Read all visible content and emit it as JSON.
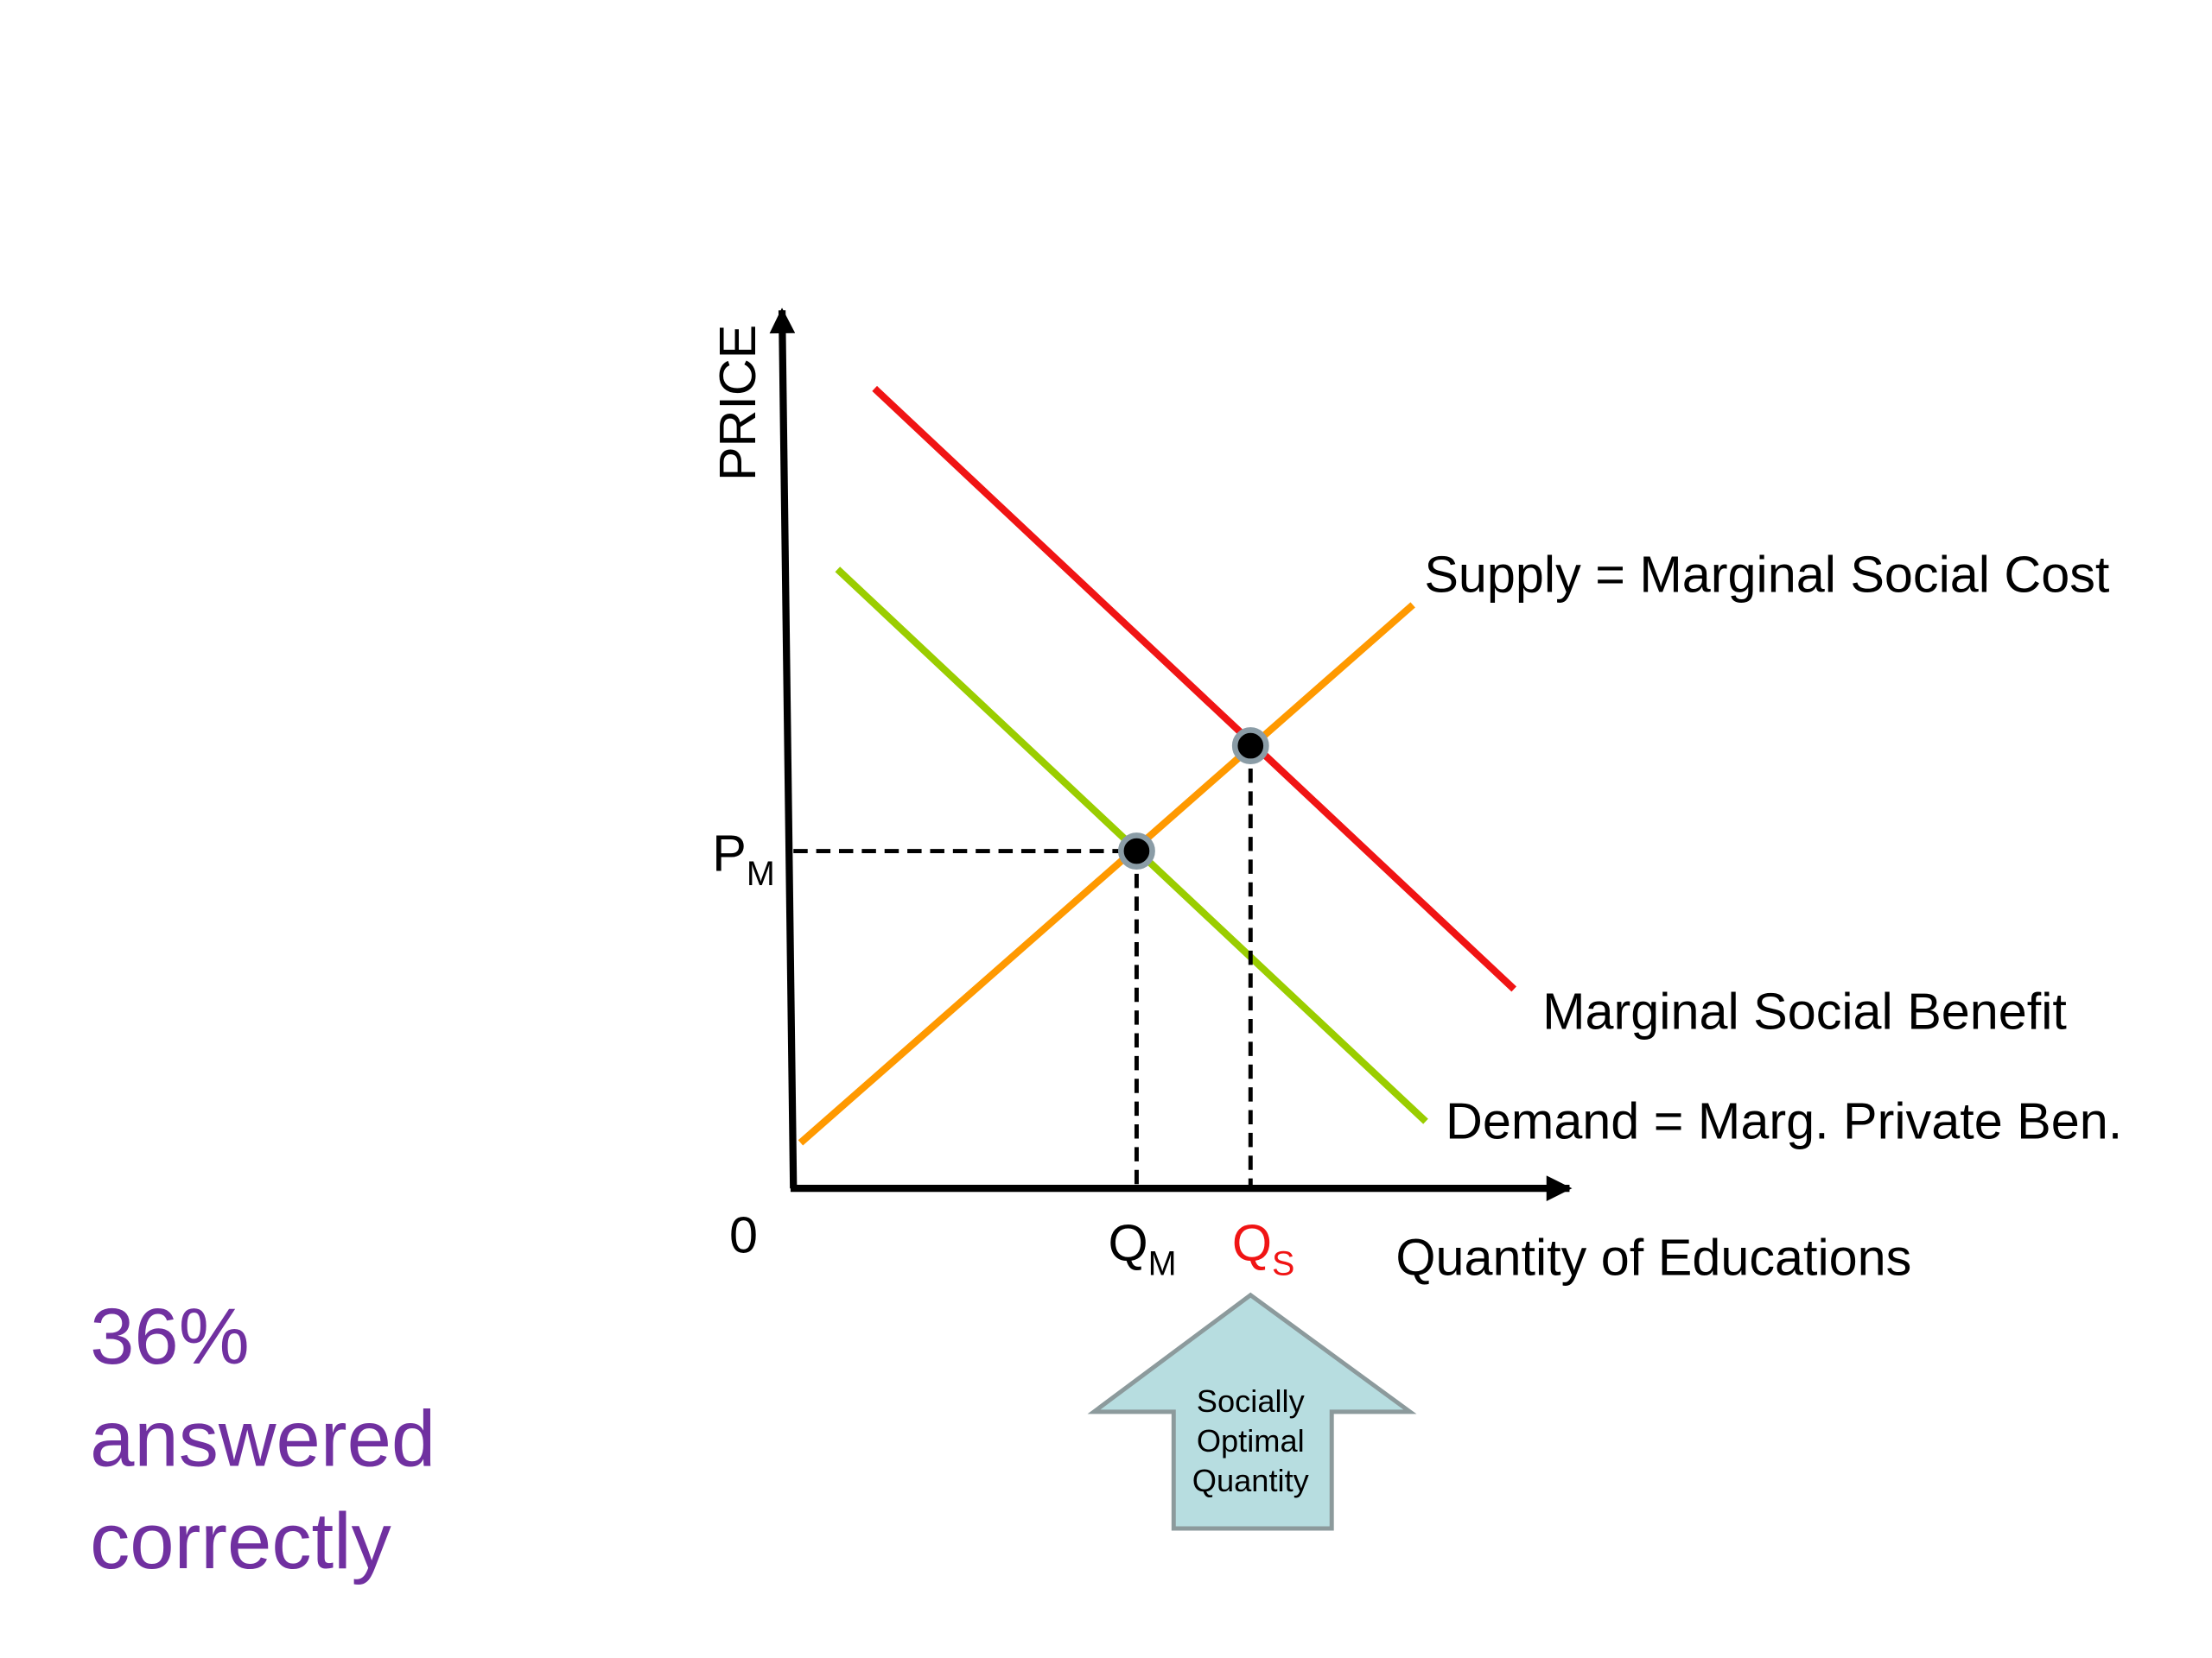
{
  "axes": {
    "y_label": "PRICE",
    "x_label": "Quantity of Educations",
    "origin": "0"
  },
  "curves": [
    {
      "label": "Supply = Marginal Social Cost"
    },
    {
      "label": "Marginal Social Benefit"
    },
    {
      "label": "Demand = Marg. Private Ben."
    }
  ],
  "points": {
    "price_market": {
      "base": "P",
      "sub": "M"
    },
    "quantity_market": {
      "base": "Q",
      "sub": "M"
    },
    "quantity_social": {
      "base": "Q",
      "sub": "S"
    }
  },
  "callout": {
    "lines": [
      "Socially",
      "Optimal",
      "Quantity"
    ]
  },
  "result": {
    "lines": [
      "36%",
      "answered",
      "correctly"
    ]
  }
}
